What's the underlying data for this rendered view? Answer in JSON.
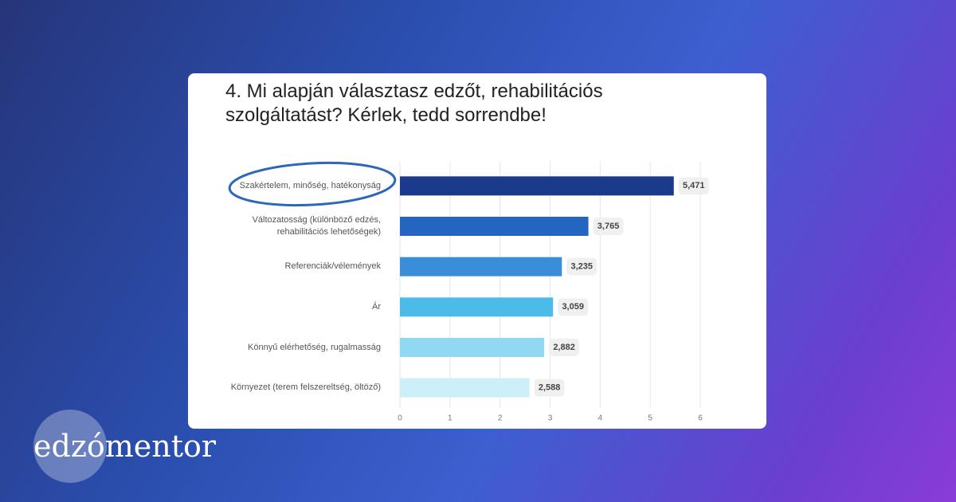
{
  "chart_data": {
    "type": "bar",
    "orientation": "horizontal",
    "title": "4. Mi alapján választasz edzőt, rehabilitációs szolgáltatást? Kérlek, tedd sorrendbe!",
    "categories": [
      "Szakértelem, minőség, hatékonyság",
      "Változatosság (különböző edzés, rehabilitációs lehetőségek)",
      "Referenciák/vélemények",
      "Ár",
      "Könnyű elérhetőség, rugalmasság",
      "Környezet (terem felszereltség, öltöző)"
    ],
    "values": [
      5.471,
      3.765,
      3.235,
      3.059,
      2.882,
      2.588
    ],
    "value_labels": [
      "5,471",
      "3,765",
      "3,235",
      "3,059",
      "2,882",
      "2,588"
    ],
    "colors": [
      "#1b3a8c",
      "#2465bf",
      "#3a8ed9",
      "#4dbbe9",
      "#91d9f3",
      "#cdeffa"
    ],
    "xlim": [
      0,
      6
    ],
    "xticks": [
      0,
      1,
      2,
      3,
      4,
      5,
      6
    ],
    "grid": true
  },
  "brand": "edzómentor"
}
